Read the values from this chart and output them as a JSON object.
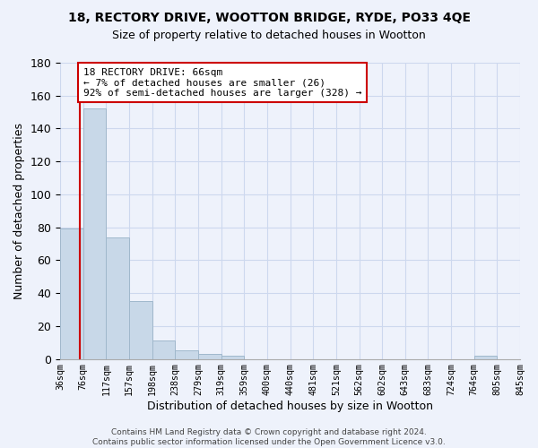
{
  "title1": "18, RECTORY DRIVE, WOOTTON BRIDGE, RYDE, PO33 4QE",
  "title2": "Size of property relative to detached houses in Wootton",
  "xlabel": "Distribution of detached houses by size in Wootton",
  "ylabel": "Number of detached properties",
  "bin_labels": [
    "36sqm",
    "76sqm",
    "117sqm",
    "157sqm",
    "198sqm",
    "238sqm",
    "279sqm",
    "319sqm",
    "359sqm",
    "400sqm",
    "440sqm",
    "481sqm",
    "521sqm",
    "562sqm",
    "602sqm",
    "643sqm",
    "683sqm",
    "724sqm",
    "764sqm",
    "805sqm",
    "845sqm"
  ],
  "counts": [
    79,
    152,
    74,
    35,
    11,
    5,
    3,
    2,
    0,
    0,
    0,
    0,
    0,
    0,
    0,
    0,
    0,
    0,
    2,
    0
  ],
  "bar_color": "#c8d8e8",
  "bar_edge_color": "#a0b8cc",
  "property_line_bin": 0.85,
  "property_line_color": "#cc0000",
  "ylim": [
    0,
    180
  ],
  "yticks": [
    0,
    20,
    40,
    60,
    80,
    100,
    120,
    140,
    160,
    180
  ],
  "annotation_text": "18 RECTORY DRIVE: 66sqm\n← 7% of detached houses are smaller (26)\n92% of semi-detached houses are larger (328) →",
  "annotation_box_color": "#ffffff",
  "annotation_box_edge": "#cc0000",
  "footnote": "Contains HM Land Registry data © Crown copyright and database right 2024.\nContains public sector information licensed under the Open Government Licence v3.0.",
  "grid_color": "#cdd8ee",
  "background_color": "#eef2fb"
}
